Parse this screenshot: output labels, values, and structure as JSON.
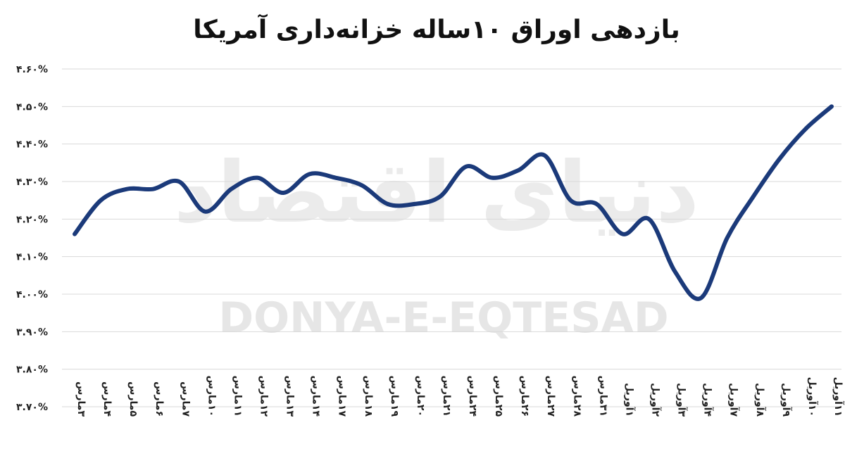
{
  "colors": {
    "line": "#1b3a7a",
    "grid": "#d9d9d9",
    "watermark": "#e3e3e3"
  },
  "watermark": {
    "latin": "DONYA-E-EQTESAD",
    "arabic": "دنیای اقتصاد"
  },
  "chart_data": {
    "type": "line",
    "title": "بازدهی اوراق ۱۰ساله خزانه‌داری آمریکا",
    "xlabel": "",
    "ylabel": "",
    "ylim": [
      3.7,
      4.6
    ],
    "yticks": [
      3.7,
      3.8,
      3.9,
      4.0,
      4.1,
      4.2,
      4.3,
      4.4,
      4.5,
      4.6
    ],
    "ytick_labels": [
      "۳.۷۰%",
      "۳.۸۰%",
      "۳.۹۰%",
      "۴.۰۰%",
      "۴.۱۰%",
      "۴.۲۰%",
      "۴.۳۰%",
      "۴.۴۰%",
      "۴.۵۰%",
      "۴.۶۰%"
    ],
    "grid": true,
    "legend": "none",
    "categories": [
      "۳مارس",
      "۴مارس",
      "۵مارس",
      "۶مارس",
      "۷مارس",
      "۱۰مارس",
      "۱۱مارس",
      "۱۲مارس",
      "۱۳مارس",
      "۱۴مارس",
      "۱۷مارس",
      "۱۸مارس",
      "۱۹مارس",
      "۲۰مارس",
      "۲۱مارس",
      "۲۴مارس",
      "۲۵مارس",
      "۲۶مارس",
      "۲۷مارس",
      "۲۸مارس",
      "۳۱مارس",
      "۱آوریل",
      "۲آوریل",
      "۳آوریل",
      "۴آوریل",
      "۷آوریل",
      "۸آوریل",
      "۹آوریل",
      "۱۰آوریل",
      "۱۱آوریل"
    ],
    "series": [
      {
        "values": [
          4.16,
          4.25,
          4.28,
          4.28,
          4.3,
          4.22,
          4.28,
          4.31,
          4.27,
          4.32,
          4.31,
          4.29,
          4.24,
          4.24,
          4.26,
          4.34,
          4.31,
          4.33,
          4.37,
          4.25,
          4.24,
          4.16,
          4.2,
          4.06,
          3.99,
          4.15,
          4.26,
          4.36,
          4.44,
          4.5
        ]
      }
    ]
  }
}
